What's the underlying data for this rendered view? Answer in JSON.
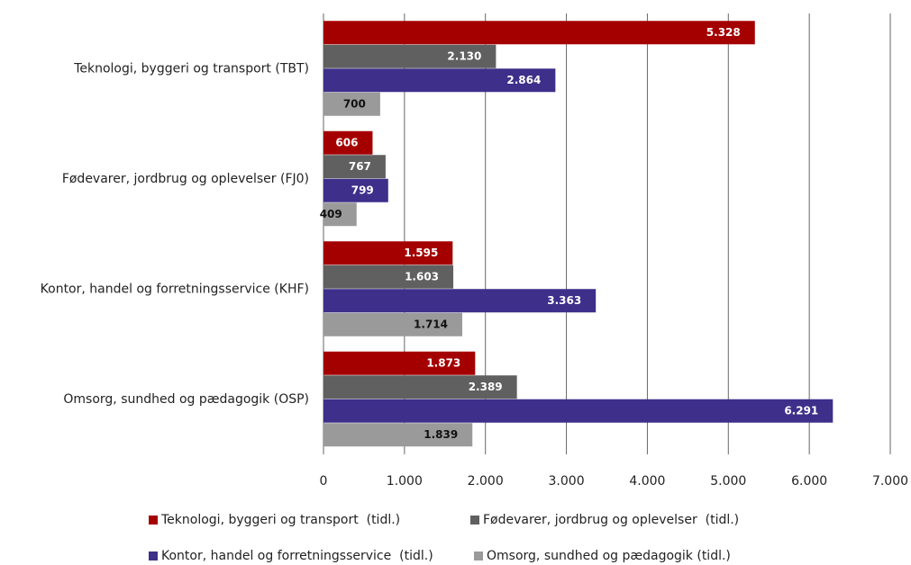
{
  "chart_data": {
    "type": "bar",
    "orientation": "horizontal",
    "categories": [
      "Teknologi, byggeri og transport (TBT)",
      "Fødevarer, jordbrug og oplevelser (FJ0)",
      "Kontor, handel og forretningsservice (KHF)",
      "Omsorg, sundhed og pædagogik (OSP)"
    ],
    "series": [
      {
        "name": "Teknologi, byggeri og transport  (tidl.)",
        "color": "#a50000",
        "label_color": "#ffffff",
        "values": [
          5328,
          606,
          1595,
          1873
        ],
        "value_labels": [
          "5.328",
          "606",
          "1.595",
          "1.873"
        ]
      },
      {
        "name": "Fødevarer, jordbrug og oplevelser  (tidl.)",
        "color": "#606060",
        "label_color": "#ffffff",
        "values": [
          2130,
          767,
          1603,
          2389
        ],
        "value_labels": [
          "2.130",
          "767",
          "1.603",
          "2.389"
        ]
      },
      {
        "name": "Kontor, handel og forretningsservice  (tidl.)",
        "color": "#3d2f8a",
        "label_color": "#ffffff",
        "values": [
          2864,
          799,
          3363,
          6291
        ],
        "value_labels": [
          "2.864",
          "799",
          "3.363",
          "6.291"
        ]
      },
      {
        "name": "Omsorg, sundhed og pædagogik (tidl.)",
        "color": "#9a9a9a",
        "label_color": "#111111",
        "values": [
          700,
          409,
          1714,
          1839
        ],
        "value_labels": [
          "700",
          "409",
          "1.714",
          "1.839"
        ]
      }
    ],
    "xlim": [
      0,
      7000
    ],
    "xticks": [
      0,
      {
        "value": 1000,
        "label": "1.000"
      },
      {
        "value": 2000,
        "label": "2.000"
      },
      {
        "value": 3000,
        "label": "3.000"
      },
      {
        "value": 4000,
        "label": "4.000"
      },
      {
        "value": 5000,
        "label": "5.000"
      },
      {
        "value": 6000,
        "label": "6.000"
      },
      {
        "value": 7000,
        "label": "7.000"
      }
    ],
    "grid": true,
    "legend": "bottom"
  }
}
